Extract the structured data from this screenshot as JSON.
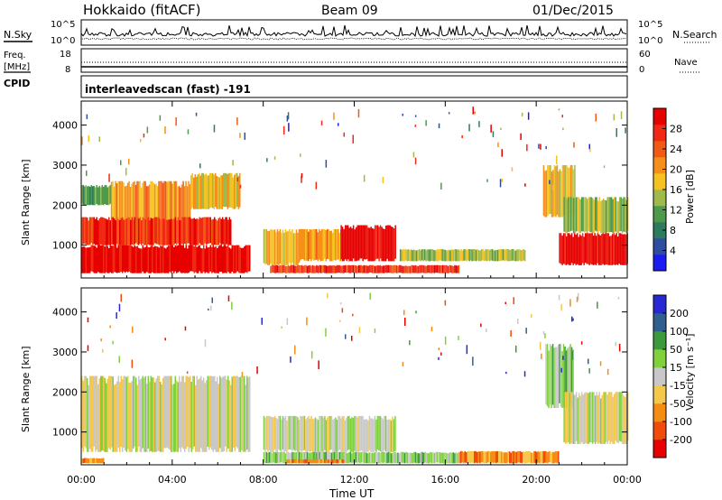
{
  "header": {
    "title": "Hokkaido (fitACF)",
    "beam": "Beam 09",
    "date": "01/Dec/2015"
  },
  "top_panels": {
    "nsky_label": "N.Sky",
    "nsearch_label": "N.Search",
    "noise_left_ticks": [
      "10^5",
      "10^0"
    ],
    "noise_right_ticks": [
      "10^5",
      "10^0"
    ],
    "freq_label_1": "Freq.",
    "freq_label_2": "[MHz]",
    "freq_ticks": [
      "18",
      "8"
    ],
    "nave_label": "Nave",
    "nave_ticks": [
      "60",
      "0"
    ],
    "cpid_label": "CPID",
    "cpid_text": "interleavedscan (fast) -191"
  },
  "chart_data": [
    {
      "type": "heatmap",
      "panel": "power",
      "ylabel": "Slant Range [km]",
      "xlabel": "",
      "x_ticks": [
        "00:00",
        "04:00",
        "08:00",
        "12:00",
        "16:00",
        "20:00",
        "00:00"
      ],
      "y_ticks": [
        "1000",
        "2000",
        "3000",
        "4000"
      ],
      "xlim": [
        0,
        24
      ],
      "ylim": [
        180,
        4600
      ],
      "colorbar_label": "Power [dB]",
      "colorbar_ticks": [
        "28",
        "24",
        "20",
        "16",
        "12",
        "8",
        "4"
      ],
      "colors": [
        "#1c1cf0",
        "#2e4d9e",
        "#2e7a5e",
        "#4d9a4d",
        "#a0b94b",
        "#f5c221",
        "#f58f19",
        "#f05a14",
        "#f02814",
        "#e60000"
      ],
      "regions": [
        {
          "x": [
            0.0,
            1.3
          ],
          "y": [
            2000,
            2500
          ],
          "level": 3
        },
        {
          "x": [
            1.3,
            4.8
          ],
          "y": [
            1300,
            2600
          ],
          "level": 6
        },
        {
          "x": [
            4.8,
            7.0
          ],
          "y": [
            1900,
            2800
          ],
          "level": 5
        },
        {
          "x": [
            0.0,
            6.6
          ],
          "y": [
            1000,
            1700
          ],
          "level": 8
        },
        {
          "x": [
            0.0,
            7.4
          ],
          "y": [
            300,
            1000
          ],
          "level": 9
        },
        {
          "x": [
            8.0,
            9.6
          ],
          "y": [
            500,
            1400
          ],
          "level": 5
        },
        {
          "x": [
            9.6,
            11.4
          ],
          "y": [
            600,
            1400
          ],
          "level": 6
        },
        {
          "x": [
            11.4,
            13.8
          ],
          "y": [
            600,
            1500
          ],
          "level": 9
        },
        {
          "x": [
            8.3,
            16.6
          ],
          "y": [
            300,
            500
          ],
          "level": 8
        },
        {
          "x": [
            14.0,
            19.5
          ],
          "y": [
            600,
            900
          ],
          "level": 4
        },
        {
          "x": [
            20.3,
            21.7
          ],
          "y": [
            1700,
            3000
          ],
          "level": 5
        },
        {
          "x": [
            21.2,
            24.0
          ],
          "y": [
            1300,
            2200
          ],
          "level": 4
        },
        {
          "x": [
            21.0,
            24.0
          ],
          "y": [
            500,
            1300
          ],
          "level": 9
        }
      ]
    },
    {
      "type": "heatmap",
      "panel": "velocity",
      "ylabel": "Slant Range [km]",
      "xlabel": "Time UT",
      "x_ticks": [
        "00:00",
        "04:00",
        "08:00",
        "12:00",
        "16:00",
        "20:00",
        "00:00"
      ],
      "y_ticks": [
        "1000",
        "2000",
        "3000",
        "4000"
      ],
      "xlim": [
        0,
        24
      ],
      "ylim": [
        180,
        4600
      ],
      "colorbar_label": "Velocity [m s⁻¹]",
      "colorbar_ticks": [
        "200",
        "100",
        "50",
        "15",
        "-15",
        "-50",
        "-100",
        "-200"
      ],
      "colors": [
        "#e60000",
        "#f04b0a",
        "#f58c14",
        "#f5c84b",
        "#c8c8c8",
        "#7fd23c",
        "#3c9a3c",
        "#2e5f8e",
        "#2828d2"
      ],
      "regions": [
        {
          "x": [
            0.0,
            7.4
          ],
          "y": [
            500,
            2400
          ],
          "level": 4
        },
        {
          "x": [
            8.0,
            13.8
          ],
          "y": [
            500,
            1400
          ],
          "level": 4
        },
        {
          "x": [
            8.0,
            16.6
          ],
          "y": [
            220,
            500
          ],
          "level": 5
        },
        {
          "x": [
            9.0,
            11.5
          ],
          "y": [
            220,
            320
          ],
          "level": 2
        },
        {
          "x": [
            16.6,
            21.0
          ],
          "y": [
            220,
            520
          ],
          "level": 2
        },
        {
          "x": [
            20.4,
            21.6
          ],
          "y": [
            1600,
            3200
          ],
          "level": 5
        },
        {
          "x": [
            21.2,
            24.0
          ],
          "y": [
            700,
            2000
          ],
          "level": 4
        },
        {
          "x": [
            0.0,
            1.0
          ],
          "y": [
            220,
            350
          ],
          "level": 2
        }
      ]
    }
  ]
}
